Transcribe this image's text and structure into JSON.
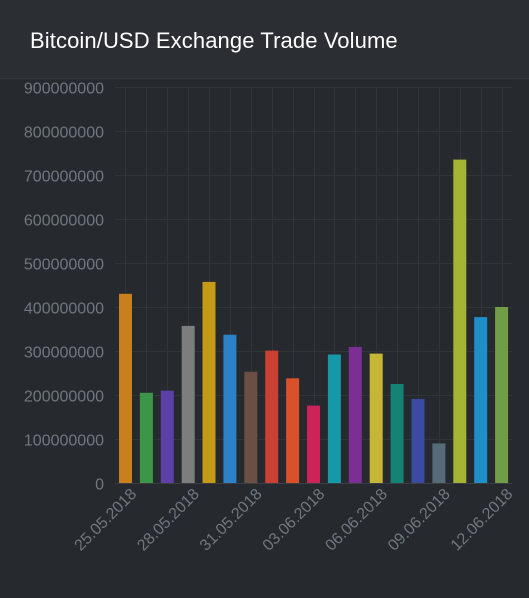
{
  "widget": {
    "title": "Bitcoin/USD Exchange Trade Volume"
  },
  "chart_data": {
    "type": "bar",
    "title": "Bitcoin/USD Exchange Trade Volume",
    "ylim": [
      0,
      900000000
    ],
    "yticks": [
      0,
      100000000,
      200000000,
      300000000,
      400000000,
      500000000,
      600000000,
      700000000,
      800000000,
      900000000
    ],
    "x_tick_labels": [
      "25.05.2018",
      "28.05.2018",
      "31.05.2018",
      "03.06.2018",
      "06.06.2018",
      "09.06.2018",
      "12.06.2018"
    ],
    "grid": true,
    "legend": "none",
    "values": [
      430000000,
      205000000,
      210000000,
      357000000,
      457000000,
      337000000,
      253000000,
      301000000,
      238000000,
      176000000,
      292000000,
      309000000,
      294000000,
      225000000,
      191000000,
      90000000,
      735000000,
      377000000,
      400000000
    ],
    "colors": [
      "#c87f1e",
      "#3c9648",
      "#5e3fa6",
      "#7d7d7d",
      "#c49a16",
      "#2b82c6",
      "#6b4e44",
      "#cc3f33",
      "#d9512a",
      "#cc2358",
      "#1698a8",
      "#7b2f96",
      "#c6b635",
      "#148275",
      "#3b4ba0",
      "#566b78",
      "#a5b432",
      "#1e8fc8",
      "#719d44"
    ]
  },
  "colors": {
    "background": "#262a2e",
    "header": "#2b2f33",
    "text_axis": "#707780"
  }
}
